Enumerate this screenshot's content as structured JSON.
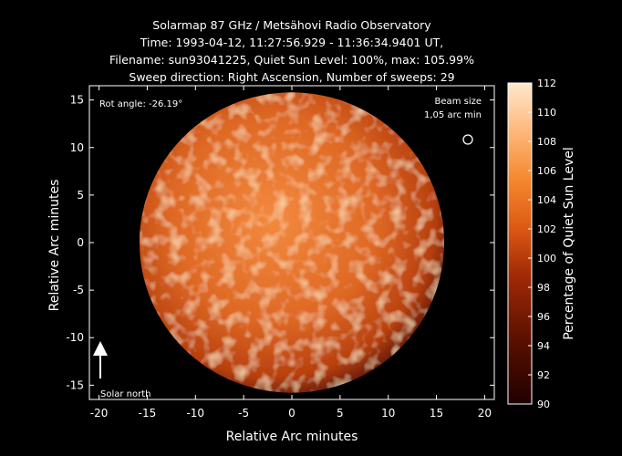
{
  "chart_data": {
    "type": "heatmap",
    "title_lines": [
      "Solarmap 87 GHz / Metsähovi Radio Observatory",
      "Time: 1993-04-12, 11:27:56.929 - 11:36:34.9401 UT,",
      "Filename: sun93041225, Quiet Sun Level: 100%, max: 105.99%",
      "Sweep direction: Right Ascension, Number of sweeps: 29"
    ],
    "xlabel": "Relative Arc minutes",
    "ylabel": "Relative Arc minutes",
    "xlim": [
      -21,
      21
    ],
    "ylim": [
      -16.5,
      16.5
    ],
    "x_ticks": [
      -20,
      -15,
      -10,
      -5,
      0,
      5,
      10,
      15,
      20
    ],
    "y_ticks": [
      -15,
      -10,
      -5,
      0,
      5,
      10,
      15
    ],
    "colorbar": {
      "label": "Percentage of Quiet Sun Level",
      "range": [
        90,
        112
      ],
      "ticks": [
        90,
        92,
        94,
        96,
        98,
        100,
        102,
        104,
        106,
        108,
        110,
        112
      ]
    },
    "disk": {
      "center": [
        0,
        0
      ],
      "radius_arcmin": 15.8
    },
    "annotations": {
      "rot_angle": "Rot angle: -26.19°",
      "beam_size_line1": "Beam size",
      "beam_size_line2": "1,05 arc min",
      "solar_north": "Solar north"
    },
    "colors": {
      "low": "#200000",
      "mid": "#c84a10",
      "high": "#ffe8cc"
    }
  }
}
